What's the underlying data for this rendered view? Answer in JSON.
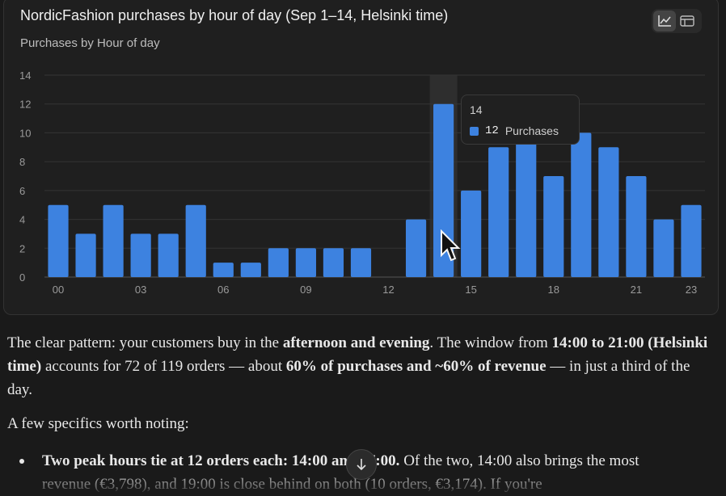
{
  "card": {
    "title": "NordicFashion purchases by hour of day (Sep 1–14, Helsinki time)",
    "subtitle": "Purchases by Hour of day",
    "view_toggle": {
      "chart_icon": "line-chart-icon",
      "table_icon": "table-icon",
      "active": "chart"
    }
  },
  "chart_data": {
    "type": "bar",
    "title": "NordicFashion purchases by hour of day (Sep 1–14, Helsinki time)",
    "subtitle": "Purchases by Hour of day",
    "categories": [
      "00",
      "01",
      "02",
      "03",
      "04",
      "05",
      "06",
      "07",
      "08",
      "09",
      "10",
      "11",
      "12",
      "13",
      "14",
      "15",
      "16",
      "17",
      "18",
      "19",
      "20",
      "21",
      "22",
      "23"
    ],
    "x_tick_labels": [
      "00",
      "03",
      "06",
      "09",
      "12",
      "15",
      "18",
      "21",
      "23"
    ],
    "series": [
      {
        "name": "Purchases",
        "values": [
          5,
          3,
          5,
          3,
          3,
          5,
          1,
          1,
          2,
          2,
          2,
          2,
          0,
          4,
          12,
          6,
          9,
          12,
          7,
          10,
          9,
          7,
          4,
          5
        ]
      }
    ],
    "ylim": [
      0,
      14
    ],
    "yticks": [
      0,
      2,
      4,
      6,
      8,
      10,
      12,
      14
    ],
    "grid": true,
    "bar_color": "#3d82e0",
    "highlight_category": "14"
  },
  "tooltip": {
    "x": "14",
    "value": "12",
    "series": "Purchases"
  },
  "body": {
    "p1": [
      {
        "t": "The clear pattern: your customers buy in the ",
        "b": false
      },
      {
        "t": "afternoon and evening",
        "b": true
      },
      {
        "t": ". The window from ",
        "b": false
      },
      {
        "t": "14:00 to 21:00 (Helsinki time)",
        "b": true
      },
      {
        "t": " accounts for 72 of 119 orders — about ",
        "b": false
      },
      {
        "t": "60% of purchases and ~60% of revenue",
        "b": true
      },
      {
        "t": " — in just a third of the day.",
        "b": false
      }
    ],
    "p2": "A few specifics worth noting:",
    "bullet1": [
      {
        "t": "Two peak hours tie at 12 orders each: 14:00 and 17:00.",
        "b": true
      },
      {
        "t": " Of the two, 14:00 also brings the most revenue (€3,798), and 19:00 is close behind on both (10 orders, €3,174). If you're",
        "b": false
      }
    ]
  },
  "scroll_button": {
    "icon": "arrow-down-icon"
  }
}
